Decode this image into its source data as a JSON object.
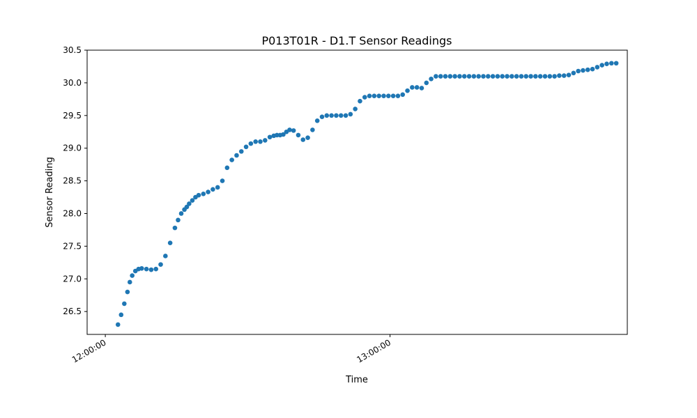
{
  "chart_data": {
    "type": "scatter",
    "title": "P013T01R - D1.T Sensor Readings",
    "xlabel": "Time",
    "ylabel": "Sensor Reading",
    "x_tick_labels": [
      "12:00:00",
      "13:00:00"
    ],
    "y_tick_labels": [
      "26.5",
      "27.0",
      "27.5",
      "28.0",
      "28.5",
      "29.0",
      "29.5",
      "30.0",
      "30.5"
    ],
    "xlim": [
      "11:56:10",
      "13:50:00"
    ],
    "ylim": [
      26.15,
      30.5
    ],
    "grid": false,
    "legend": "none",
    "marker_color": "#1f77b4",
    "series": [
      {
        "x": [
          "12:02:40",
          "12:03:20",
          "12:04:00",
          "12:04:40",
          "12:05:10",
          "12:05:40",
          "12:06:20",
          "12:07:00",
          "12:07:40",
          "12:08:40",
          "12:09:40",
          "12:10:40",
          "12:11:40",
          "12:12:40",
          "12:13:40",
          "12:14:40",
          "12:15:20",
          "12:16:00",
          "12:16:40",
          "12:17:10",
          "12:17:40",
          "12:18:20",
          "12:19:00",
          "12:19:40",
          "12:20:40",
          "12:21:40",
          "12:22:40",
          "12:23:40",
          "12:24:40",
          "12:25:40",
          "12:26:40",
          "12:27:40",
          "12:28:40",
          "12:29:40",
          "12:30:40",
          "12:31:40",
          "12:32:40",
          "12:33:40",
          "12:34:40",
          "12:35:30",
          "12:36:10",
          "12:36:50",
          "12:37:30",
          "12:38:10",
          "12:38:50",
          "12:39:40",
          "12:40:40",
          "12:41:40",
          "12:42:40",
          "12:43:40",
          "12:44:40",
          "12:45:40",
          "12:46:40",
          "12:47:40",
          "12:48:40",
          "12:49:40",
          "12:50:40",
          "12:51:40",
          "12:52:40",
          "12:53:40",
          "12:54:40",
          "12:55:40",
          "12:56:40",
          "12:57:40",
          "12:58:40",
          "12:59:40",
          "13:00:40",
          "13:01:40",
          "13:02:40",
          "13:03:40",
          "13:04:40",
          "13:05:40",
          "13:06:40",
          "13:07:40",
          "13:08:40",
          "13:09:40",
          "13:10:40",
          "13:11:40",
          "13:12:40",
          "13:13:40",
          "13:14:40",
          "13:15:40",
          "13:16:40",
          "13:17:40",
          "13:18:40",
          "13:19:40",
          "13:20:40",
          "13:21:40",
          "13:22:40",
          "13:23:40",
          "13:24:40",
          "13:25:40",
          "13:26:40",
          "13:27:40",
          "13:28:40",
          "13:29:40",
          "13:30:40",
          "13:31:40",
          "13:32:40",
          "13:33:40",
          "13:34:40",
          "13:35:40",
          "13:36:40",
          "13:37:40",
          "13:38:40",
          "13:39:40",
          "13:40:40",
          "13:41:40",
          "13:42:40",
          "13:43:40",
          "13:44:40",
          "13:45:40",
          "13:46:40",
          "13:47:40"
        ],
        "y": [
          26.3,
          26.45,
          26.62,
          26.8,
          26.95,
          27.05,
          27.12,
          27.15,
          27.16,
          27.15,
          27.14,
          27.15,
          27.22,
          27.35,
          27.55,
          27.78,
          27.9,
          28.0,
          28.06,
          28.1,
          28.15,
          28.2,
          28.25,
          28.28,
          28.3,
          28.33,
          28.37,
          28.4,
          28.5,
          28.7,
          28.82,
          28.89,
          28.95,
          29.02,
          29.07,
          29.1,
          29.1,
          29.12,
          29.17,
          29.19,
          29.2,
          29.2,
          29.21,
          29.25,
          29.28,
          29.27,
          29.2,
          29.13,
          29.16,
          29.28,
          29.42,
          29.48,
          29.5,
          29.5,
          29.5,
          29.5,
          29.5,
          29.52,
          29.6,
          29.72,
          29.78,
          29.8,
          29.8,
          29.8,
          29.8,
          29.8,
          29.8,
          29.8,
          29.82,
          29.88,
          29.93,
          29.93,
          29.92,
          30.0,
          30.06,
          30.1,
          30.1,
          30.1,
          30.1,
          30.1,
          30.1,
          30.1,
          30.1,
          30.1,
          30.1,
          30.1,
          30.1,
          30.1,
          30.1,
          30.1,
          30.1,
          30.1,
          30.1,
          30.1,
          30.1,
          30.1,
          30.1,
          30.1,
          30.1,
          30.1,
          30.1,
          30.11,
          30.11,
          30.12,
          30.15,
          30.18,
          30.19,
          30.2,
          30.21,
          30.24,
          30.27,
          30.29,
          30.3,
          30.3
        ]
      }
    ]
  }
}
